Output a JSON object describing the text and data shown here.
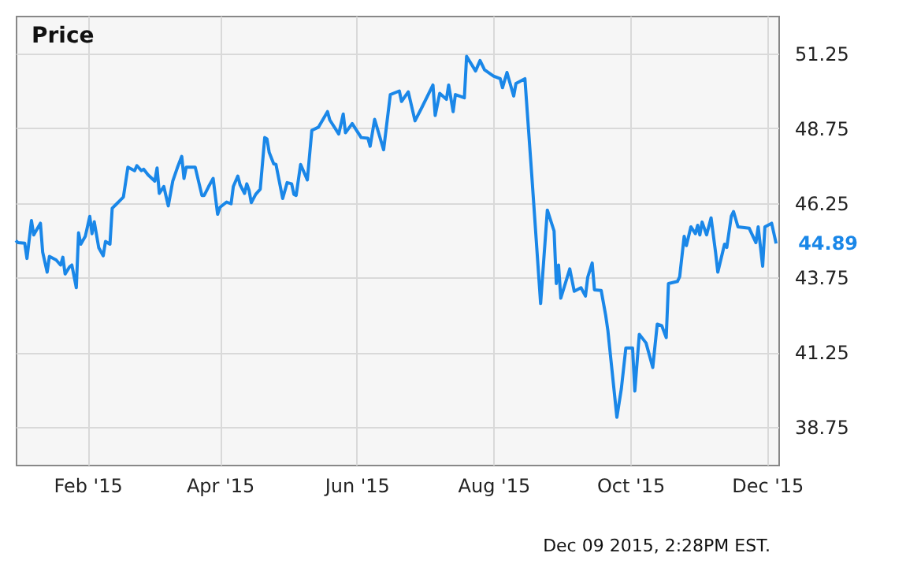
{
  "chart_data": {
    "type": "line",
    "title": "Price",
    "x": [
      "2014-12-31",
      "2015-01-01",
      "2015-01-04",
      "2015-01-05",
      "2015-01-07",
      "2015-01-08",
      "2015-01-09",
      "2015-01-11",
      "2015-01-12",
      "2015-01-14",
      "2015-01-15",
      "2015-01-18",
      "2015-01-20",
      "2015-01-21",
      "2015-01-22",
      "2015-01-24",
      "2015-01-25",
      "2015-01-27",
      "2015-01-28",
      "2015-01-29",
      "2015-01-31",
      "2015-02-02",
      "2015-02-03",
      "2015-02-04",
      "2015-02-06",
      "2015-02-08",
      "2015-02-09",
      "2015-02-11",
      "2015-02-12",
      "2015-02-14",
      "2015-02-17",
      "2015-02-19",
      "2015-02-22",
      "2015-02-23",
      "2015-02-25",
      "2015-02-26",
      "2015-02-28",
      "2015-03-03",
      "2015-03-04",
      "2015-03-05",
      "2015-03-07",
      "2015-03-09",
      "2015-03-11",
      "2015-03-13",
      "2015-03-15",
      "2015-03-16",
      "2015-03-17",
      "2015-03-21",
      "2015-03-24",
      "2015-03-25",
      "2015-03-27",
      "2015-03-29",
      "2015-03-31",
      "2015-04-01",
      "2015-04-04",
      "2015-04-06",
      "2015-04-07",
      "2015-04-09",
      "2015-04-10",
      "2015-04-12",
      "2015-04-13",
      "2015-04-14",
      "2015-04-15",
      "2015-04-17",
      "2015-04-19",
      "2015-04-21",
      "2015-04-22",
      "2015-04-23",
      "2015-04-25",
      "2015-04-26",
      "2015-04-29",
      "2015-05-01",
      "2015-05-03",
      "2015-05-04",
      "2015-05-05",
      "2015-05-07",
      "2015-05-10",
      "2015-05-12",
      "2015-05-15",
      "2015-05-19",
      "2015-05-20",
      "2015-05-24",
      "2015-05-26",
      "2015-05-27",
      "2015-05-30",
      "2015-06-03",
      "2015-06-06",
      "2015-06-07",
      "2015-06-09",
      "2015-06-13",
      "2015-06-16",
      "2015-06-20",
      "2015-06-21",
      "2015-06-24",
      "2015-06-27",
      "2015-06-30",
      "2015-07-05",
      "2015-07-06",
      "2015-07-08",
      "2015-07-11",
      "2015-07-12",
      "2015-07-14",
      "2015-07-15",
      "2015-07-19",
      "2015-07-20",
      "2015-07-24",
      "2015-07-26",
      "2015-07-28",
      "2015-08-01",
      "2015-08-04",
      "2015-08-05",
      "2015-08-07",
      "2015-08-10",
      "2015-08-11",
      "2015-08-15",
      "2015-08-18",
      "2015-08-22",
      "2015-08-25",
      "2015-08-28",
      "2015-08-29",
      "2015-08-30",
      "2015-08-31",
      "2015-09-04",
      "2015-09-06",
      "2015-09-09",
      "2015-09-11",
      "2015-09-12",
      "2015-09-14",
      "2015-09-15",
      "2015-09-18",
      "2015-09-20",
      "2015-09-21",
      "2015-09-25",
      "2015-09-27",
      "2015-09-29",
      "2015-10-02",
      "2015-10-03",
      "2015-10-05",
      "2015-10-08",
      "2015-10-11",
      "2015-10-13",
      "2015-10-15",
      "2015-10-17",
      "2015-10-18",
      "2015-10-22",
      "2015-10-23",
      "2015-10-25",
      "2015-10-26",
      "2015-10-28",
      "2015-10-30",
      "2015-10-31",
      "2015-11-01",
      "2015-11-02",
      "2015-11-04",
      "2015-11-06",
      "2015-11-08",
      "2015-11-09",
      "2015-11-12",
      "2015-11-13",
      "2015-11-15",
      "2015-11-16",
      "2015-11-18",
      "2015-11-23",
      "2015-11-26",
      "2015-11-27",
      "2015-11-29",
      "2015-11-30",
      "2015-12-03",
      "2015-12-05"
    ],
    "series": [
      {
        "color": "#1a87e8",
        "values": [
          44.99,
          44.92,
          44.9,
          44.39,
          45.66,
          45.18,
          45.31,
          45.57,
          44.6,
          43.93,
          44.46,
          44.34,
          44.17,
          44.43,
          43.87,
          44.11,
          44.17,
          43.41,
          45.25,
          44.87,
          45.13,
          45.8,
          45.22,
          45.62,
          44.75,
          44.48,
          44.96,
          44.87,
          46.07,
          46.22,
          46.45,
          47.45,
          47.33,
          47.5,
          47.33,
          47.38,
          47.19,
          46.98,
          47.42,
          46.57,
          46.8,
          46.15,
          46.98,
          47.42,
          47.81,
          47.07,
          47.45,
          47.45,
          46.5,
          46.5,
          46.8,
          47.07,
          45.87,
          46.1,
          46.28,
          46.22,
          46.8,
          47.15,
          46.86,
          46.57,
          46.89,
          46.68,
          46.26,
          46.54,
          46.71,
          48.44,
          48.39,
          47.94,
          47.56,
          47.54,
          46.4,
          46.93,
          46.89,
          46.54,
          46.5,
          47.54,
          47.02,
          48.68,
          48.79,
          49.31,
          49.03,
          48.56,
          49.23,
          48.6,
          48.91,
          48.44,
          48.42,
          48.15,
          49.05,
          48.03,
          49.88,
          50.0,
          49.65,
          49.97,
          49.0,
          49.44,
          50.2,
          49.18,
          49.92,
          49.72,
          50.2,
          49.31,
          49.88,
          49.77,
          51.16,
          50.67,
          51.02,
          50.71,
          50.5,
          50.41,
          50.11,
          50.62,
          49.83,
          50.25,
          50.41,
          47.24,
          42.88,
          46.01,
          45.31,
          43.55,
          44.17,
          43.06,
          44.04,
          43.29,
          43.41,
          43.13,
          43.76,
          44.24,
          43.34,
          43.32,
          42.49,
          41.97,
          39.07,
          40.03,
          41.39,
          41.39,
          39.95,
          41.85,
          41.56,
          40.74,
          42.19,
          42.14,
          41.74,
          43.55,
          43.62,
          43.78,
          45.13,
          44.82,
          45.45,
          45.22,
          45.5,
          45.18,
          45.61,
          45.18,
          45.75,
          44.6,
          43.93,
          44.87,
          44.76,
          45.8,
          45.96,
          45.45,
          45.4,
          44.92,
          45.45,
          44.13,
          45.45,
          45.57,
          44.89
        ]
      }
    ],
    "xlim": [
      "2014-12-31",
      "2015-12-06"
    ],
    "xticks": [
      {
        "value": "2015-02-01",
        "label": "Feb '15"
      },
      {
        "value": "2015-04-01",
        "label": "Apr '15"
      },
      {
        "value": "2015-06-01",
        "label": "Jun '15"
      },
      {
        "value": "2015-08-01",
        "label": "Aug '15"
      },
      {
        "value": "2015-10-01",
        "label": "Oct '15"
      },
      {
        "value": "2015-12-01",
        "label": "Dec '15"
      }
    ],
    "ylim": [
      37.48,
      52.52
    ],
    "yticks": [
      38.75,
      41.25,
      43.75,
      46.25,
      48.75,
      51.25
    ],
    "grid": true,
    "marker": "none",
    "line_style": "solid",
    "annotations": [
      {
        "text": "44.89",
        "x": "2015-12-05",
        "y": 44.89
      },
      "Dec 09 2015, 2:28PM EST."
    ]
  }
}
